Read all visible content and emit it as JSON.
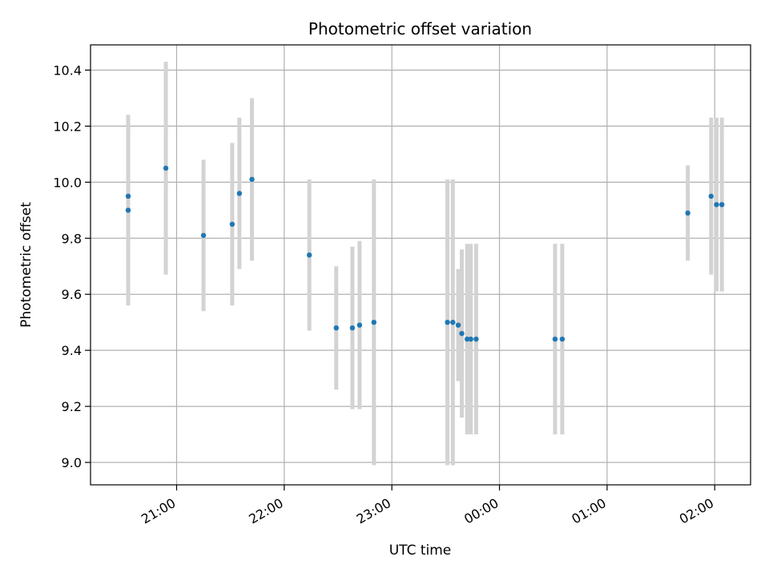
{
  "chart_data": {
    "type": "scatter",
    "title": "Photometric offset variation",
    "xlabel": "UTC time",
    "ylabel": "Photometric offset",
    "x_axis_type": "time",
    "xlim": [
      "20:12",
      "02:20"
    ],
    "ylim": [
      8.92,
      10.49
    ],
    "grid": true,
    "x_ticks": [
      "21:00",
      "22:00",
      "23:00",
      "00:00",
      "01:00",
      "02:00"
    ],
    "y_ticks": [
      "9.0",
      "9.2",
      "9.4",
      "9.6",
      "9.8",
      "10.0",
      "10.2",
      "10.4"
    ],
    "colors": {
      "point": "#1f77b4",
      "error_bar": "#d3d3d3",
      "grid": "#b0b0b0"
    },
    "points": [
      {
        "x": "20:33",
        "y": 9.95,
        "yerr": 0.29
      },
      {
        "x": "20:33",
        "y": 9.9,
        "yerr": 0.34
      },
      {
        "x": "20:54",
        "y": 10.05,
        "yerr": 0.38
      },
      {
        "x": "21:15",
        "y": 9.81,
        "yerr": 0.27
      },
      {
        "x": "21:31",
        "y": 9.85,
        "yerr": 0.29
      },
      {
        "x": "21:35",
        "y": 9.96,
        "yerr": 0.27
      },
      {
        "x": "21:42",
        "y": 10.01,
        "yerr": 0.29
      },
      {
        "x": "22:14",
        "y": 9.74,
        "yerr": 0.27
      },
      {
        "x": "22:29",
        "y": 9.48,
        "yerr": 0.22
      },
      {
        "x": "22:38",
        "y": 9.48,
        "yerr": 0.29
      },
      {
        "x": "22:42",
        "y": 9.49,
        "yerr": 0.3
      },
      {
        "x": "22:50",
        "y": 9.5,
        "yerr": 0.51
      },
      {
        "x": "23:31",
        "y": 9.5,
        "yerr": 0.51
      },
      {
        "x": "23:34",
        "y": 9.5,
        "yerr": 0.51
      },
      {
        "x": "23:37",
        "y": 9.49,
        "yerr": 0.2
      },
      {
        "x": "23:39",
        "y": 9.46,
        "yerr": 0.3
      },
      {
        "x": "23:42",
        "y": 9.44,
        "yerr": 0.34
      },
      {
        "x": "23:44",
        "y": 9.44,
        "yerr": 0.34
      },
      {
        "x": "23:47",
        "y": 9.44,
        "yerr": 0.34
      },
      {
        "x": "00:31",
        "y": 9.44,
        "yerr": 0.34
      },
      {
        "x": "00:35",
        "y": 9.44,
        "yerr": 0.34
      },
      {
        "x": "01:45",
        "y": 9.89,
        "yerr": 0.17
      },
      {
        "x": "01:58",
        "y": 9.95,
        "yerr": 0.28
      },
      {
        "x": "02:01",
        "y": 9.92,
        "yerr": 0.31
      },
      {
        "x": "02:04",
        "y": 9.92,
        "yerr": 0.31
      }
    ]
  }
}
